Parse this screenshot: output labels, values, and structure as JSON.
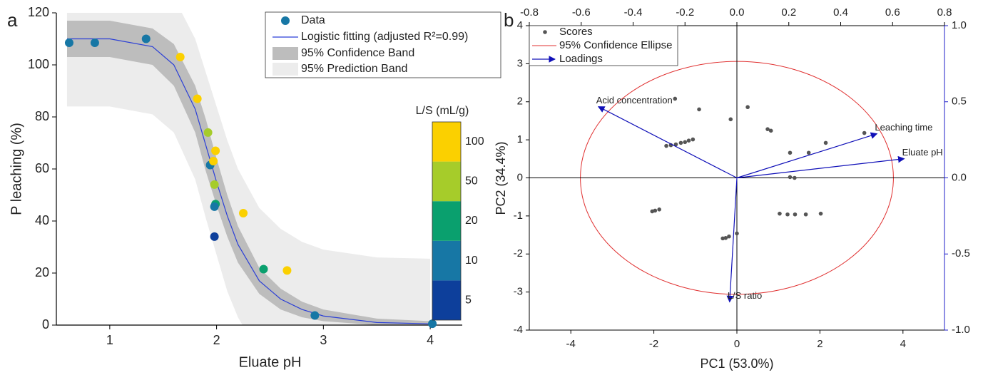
{
  "chart_data": [
    {
      "type": "scatter",
      "panel_label": "a",
      "x_label": "Eluate pH",
      "y_label": "P leaching (%)",
      "xlim": [
        0.5,
        4.3
      ],
      "ylim": [
        0,
        120
      ],
      "xticks": [
        1,
        2,
        3,
        4
      ],
      "yticks": [
        0,
        20,
        40,
        60,
        80,
        100,
        120
      ],
      "series": [
        {
          "name": "Data",
          "color": "#1777a5",
          "x": [
            0.62,
            0.86,
            1.34,
            1.66,
            1.82,
            1.92,
            1.94,
            1.97,
            1.99,
            1.98,
            1.99,
            1.98,
            1.98,
            2.25,
            2.44,
            2.66,
            2.92,
            4.02
          ],
          "values": [
            108.5,
            108.5,
            110,
            103,
            87,
            74,
            61.5,
            63,
            67,
            54,
            46.5,
            45.5,
            34,
            43,
            21.5,
            21,
            3.7,
            0.5
          ],
          "ls": [
            10,
            10,
            10,
            100,
            100,
            50,
            10,
            100,
            100,
            50,
            20,
            10,
            5,
            100,
            20,
            100,
            10,
            10
          ]
        }
      ],
      "fit": {
        "name": "Logistic fitting (adjusted R²=0.99)",
        "color": "#2b3fd6",
        "x": [
          0.6,
          1.0,
          1.4,
          1.6,
          1.8,
          1.9,
          2.0,
          2.1,
          2.2,
          2.4,
          2.6,
          2.8,
          3.0,
          3.5,
          4.0
        ],
        "values": [
          110,
          110,
          107,
          100,
          83,
          69,
          55,
          42,
          31,
          17,
          10,
          6,
          3.5,
          1,
          0.5
        ]
      },
      "bands": [
        {
          "name": "95% Prediction Band",
          "color": "#ececec",
          "upper": [
            136,
            136,
            133,
            126,
            110,
            97,
            84,
            71,
            60,
            45,
            37,
            32,
            29,
            26,
            25.5
          ],
          "lower": [
            84,
            84,
            81,
            74,
            56,
            41,
            27,
            13,
            3,
            -11,
            -17,
            -20,
            -22,
            -25,
            -25.5
          ]
        },
        {
          "name": "95% Confidence Band",
          "color": "#bdbdbd",
          "upper": [
            117,
            117,
            114,
            108,
            92,
            79,
            64,
            50,
            38,
            22,
            14,
            9,
            6,
            2.5,
            1.5
          ],
          "lower": [
            103,
            103,
            100,
            92,
            74,
            59,
            46,
            34,
            24,
            12,
            6,
            3,
            1.5,
            0,
            0
          ]
        }
      ],
      "colorbar": {
        "title": "L/S (mL/g)",
        "levels": [
          5,
          10,
          20,
          50,
          100
        ],
        "colors": [
          "#0d3f9b",
          "#1777a5",
          "#0aa06e",
          "#a6cc2a",
          "#fbd000"
        ]
      }
    },
    {
      "type": "biplot",
      "panel_label": "b",
      "x_label": "PC1 (53.0%)",
      "y_label": "PC2 (34.4%)",
      "xlim": [
        -5,
        5
      ],
      "ylim": [
        -4,
        4
      ],
      "xticks": [
        -4,
        -2,
        0,
        2,
        4
      ],
      "yticks": [
        -4,
        -3,
        -2,
        -1,
        0,
        1,
        2,
        3,
        4
      ],
      "x2lim": [
        -0.8,
        0.8
      ],
      "x2ticks": [
        -0.8,
        -0.6,
        -0.4,
        -0.2,
        {
          "value": 0,
          "label": "0.0"
        },
        0.2,
        0.4,
        0.6,
        0.8
      ],
      "y2lim": [
        -1,
        1
      ],
      "y2ticks": [
        {
          "value": 1,
          "label": "1.0"
        },
        0.5,
        {
          "value": 0,
          "label": "0.0"
        },
        -0.5,
        {
          "value": -1,
          "label": "-1.0"
        }
      ],
      "y2_color": "#1c1cc8",
      "scores": {
        "name": "Scores",
        "color": "#555555",
        "x": [
          -1.49,
          -0.91,
          -0.15,
          0.26,
          0.74,
          0.82,
          -1.7,
          -1.59,
          -1.47,
          -1.35,
          -1.25,
          -1.16,
          -1.06,
          1.28,
          1.73,
          2.14,
          3.07,
          1.28,
          1.39,
          -2.04,
          -1.97,
          -1.87,
          -0.34,
          -0.27,
          -0.19,
          0,
          1.03,
          1.22,
          1.4,
          1.66,
          2.02
        ],
        "values": [
          2.08,
          1.8,
          1.54,
          1.86,
          1.28,
          1.24,
          0.84,
          0.86,
          0.88,
          0.92,
          0.94,
          0.98,
          1.01,
          0.66,
          0.66,
          0.92,
          1.18,
          0.02,
          0,
          -0.88,
          -0.86,
          -0.83,
          -1.59,
          -1.58,
          -1.54,
          -1.46,
          -0.94,
          -0.96,
          -0.96,
          -0.96,
          -0.94
        ]
      },
      "ellipse": {
        "name": "95% Confidence Ellipse",
        "color": "#e03030",
        "center": [
          0,
          0
        ],
        "rx": 3.77,
        "ry": 3.06
      },
      "loadings": {
        "name": "Loadings",
        "color": "#1010b8",
        "labels": [
          "Acid concentration",
          "Leaching time",
          "Eluate pH",
          "L/S ratio"
        ],
        "x": [
          -0.534,
          0.54,
          0.645,
          -0.028
        ],
        "values": [
          0.468,
          0.29,
          0.126,
          -0.815
        ]
      }
    }
  ]
}
